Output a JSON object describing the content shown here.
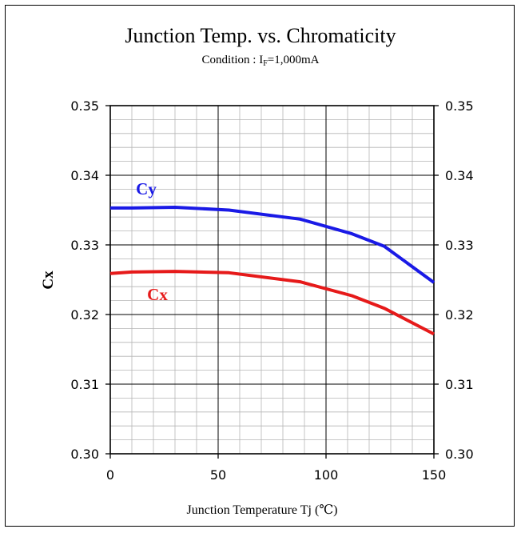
{
  "chart_data": {
    "type": "line",
    "title": "Junction Temp. vs. Chromaticity",
    "subtitle": {
      "prefix": "Condition :  I",
      "sub": "F",
      "suffix": "=1,000mA"
    },
    "xlabel": "Junction Temperature Tj (℃)",
    "ylabel": "Cx",
    "xlim": [
      0,
      150
    ],
    "ylim": [
      0.3,
      0.35
    ],
    "x_ticks": [
      "0",
      "50",
      "100",
      "150"
    ],
    "y_ticks": [
      "0.30",
      "0.31",
      "0.32",
      "0.33",
      "0.34",
      "0.35"
    ],
    "grid": true,
    "series": [
      {
        "name": "Cy",
        "color": "#1a1ae6",
        "x": [
          0,
          10,
          30,
          55,
          88,
          112,
          127,
          150
        ],
        "y": [
          0.3353,
          0.3353,
          0.3354,
          0.335,
          0.3337,
          0.3316,
          0.3298,
          0.3246
        ]
      },
      {
        "name": "Cx",
        "color": "#e61a1a",
        "x": [
          0,
          10,
          30,
          55,
          88,
          112,
          127,
          150
        ],
        "y": [
          0.3259,
          0.3261,
          0.3262,
          0.326,
          0.3247,
          0.3227,
          0.3209,
          0.3172
        ]
      }
    ]
  }
}
